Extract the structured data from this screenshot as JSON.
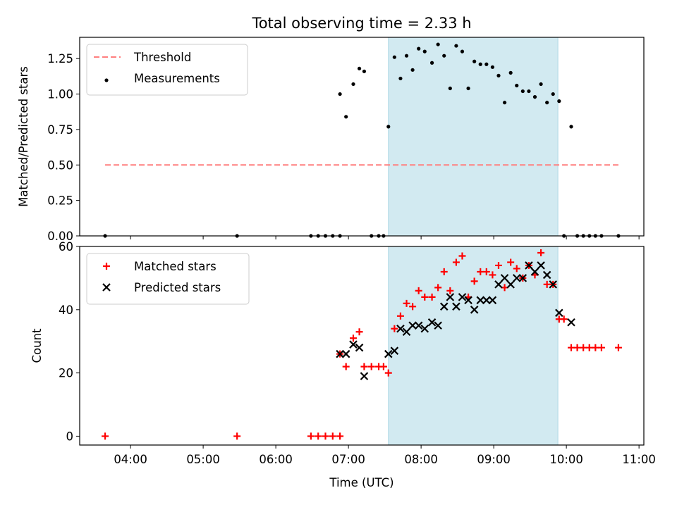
{
  "figure": {
    "title": "Total observing time = 2.33 h",
    "xlabel": "Time (UTC)",
    "xticks": [
      "04:00",
      "05:00",
      "06:00",
      "07:00",
      "08:00",
      "09:00",
      "10:00",
      "11:00"
    ],
    "shade_color": "#add8e6"
  },
  "chart_data": [
    {
      "type": "scatter",
      "ylabel": "Matched/Predicted stars",
      "ylim": [
        0,
        1.4
      ],
      "yticks": [
        "0.00",
        "0.25",
        "0.50",
        "0.75",
        "1.00",
        "1.25"
      ],
      "xlim": [
        "03:18",
        "11:04"
      ],
      "shaded_interval": [
        "07:33",
        "09:53"
      ],
      "legend": {
        "position": "upper-left"
      },
      "threshold": {
        "name": "Threshold",
        "value": 0.5,
        "x": [
          "03:39",
          "10:43"
        ],
        "color": "#ff7f7f",
        "style": "dashed"
      },
      "series": [
        {
          "name": "Measurements",
          "color": "#000000",
          "marker": "dot",
          "points": [
            [
              "03:39",
              0.0
            ],
            [
              "05:28",
              0.0
            ],
            [
              "06:29",
              0.0
            ],
            [
              "06:35",
              0.0
            ],
            [
              "06:41",
              0.0
            ],
            [
              "06:47",
              0.0
            ],
            [
              "06:53",
              0.0
            ],
            [
              "06:53",
              1.0
            ],
            [
              "06:58",
              0.84
            ],
            [
              "07:04",
              1.07
            ],
            [
              "07:09",
              1.18
            ],
            [
              "07:13",
              1.16
            ],
            [
              "07:19",
              0.0
            ],
            [
              "07:25",
              0.0
            ],
            [
              "07:29",
              0.0
            ],
            [
              "07:33",
              0.77
            ],
            [
              "07:38",
              1.26
            ],
            [
              "07:43",
              1.11
            ],
            [
              "07:48",
              1.27
            ],
            [
              "07:53",
              1.17
            ],
            [
              "07:58",
              1.32
            ],
            [
              "08:03",
              1.3
            ],
            [
              "08:09",
              1.22
            ],
            [
              "08:14",
              1.35
            ],
            [
              "08:19",
              1.27
            ],
            [
              "08:24",
              1.04
            ],
            [
              "08:29",
              1.34
            ],
            [
              "08:34",
              1.3
            ],
            [
              "08:39",
              1.04
            ],
            [
              "08:44",
              1.23
            ],
            [
              "08:49",
              1.21
            ],
            [
              "08:54",
              1.21
            ],
            [
              "08:59",
              1.19
            ],
            [
              "09:04",
              1.13
            ],
            [
              "09:09",
              0.94
            ],
            [
              "09:14",
              1.15
            ],
            [
              "09:19",
              1.06
            ],
            [
              "09:24",
              1.02
            ],
            [
              "09:29",
              1.02
            ],
            [
              "09:34",
              0.98
            ],
            [
              "09:39",
              1.07
            ],
            [
              "09:44",
              0.94
            ],
            [
              "09:49",
              1.0
            ],
            [
              "09:54",
              0.95
            ],
            [
              "09:58",
              0.0
            ],
            [
              "10:04",
              0.77
            ],
            [
              "10:09",
              0.0
            ],
            [
              "10:14",
              0.0
            ],
            [
              "10:19",
              0.0
            ],
            [
              "10:24",
              0.0
            ],
            [
              "10:29",
              0.0
            ],
            [
              "10:43",
              0.0
            ]
          ]
        }
      ]
    },
    {
      "type": "scatter",
      "ylabel": "Count",
      "ylim": [
        -2.8,
        60
      ],
      "yticks": [
        "0",
        "20",
        "40",
        "60"
      ],
      "xlim": [
        "03:18",
        "11:04"
      ],
      "shaded_interval": [
        "07:33",
        "09:53"
      ],
      "legend": {
        "position": "upper-left"
      },
      "series": [
        {
          "name": "Matched stars",
          "color": "#ff0000",
          "marker": "plus",
          "points": [
            [
              "03:39",
              0
            ],
            [
              "05:28",
              0
            ],
            [
              "06:29",
              0
            ],
            [
              "06:35",
              0
            ],
            [
              "06:41",
              0
            ],
            [
              "06:47",
              0
            ],
            [
              "06:53",
              0
            ],
            [
              "06:53",
              26
            ],
            [
              "06:58",
              22
            ],
            [
              "07:04",
              31
            ],
            [
              "07:09",
              33
            ],
            [
              "07:13",
              22
            ],
            [
              "07:19",
              22
            ],
            [
              "07:25",
              22
            ],
            [
              "07:29",
              22
            ],
            [
              "07:33",
              20
            ],
            [
              "07:38",
              34
            ],
            [
              "07:43",
              38
            ],
            [
              "07:48",
              42
            ],
            [
              "07:53",
              41
            ],
            [
              "07:58",
              46
            ],
            [
              "08:03",
              44
            ],
            [
              "08:09",
              44
            ],
            [
              "08:14",
              47
            ],
            [
              "08:19",
              52
            ],
            [
              "08:24",
              46
            ],
            [
              "08:29",
              55
            ],
            [
              "08:34",
              57
            ],
            [
              "08:39",
              44
            ],
            [
              "08:44",
              49
            ],
            [
              "08:49",
              52
            ],
            [
              "08:54",
              52
            ],
            [
              "08:59",
              51
            ],
            [
              "09:04",
              54
            ],
            [
              "09:09",
              47
            ],
            [
              "09:14",
              55
            ],
            [
              "09:19",
              53
            ],
            [
              "09:24",
              50
            ],
            [
              "09:29",
              54
            ],
            [
              "09:34",
              51
            ],
            [
              "09:39",
              58
            ],
            [
              "09:44",
              48
            ],
            [
              "09:49",
              48
            ],
            [
              "09:54",
              37
            ],
            [
              "09:58",
              37
            ],
            [
              "10:04",
              28
            ],
            [
              "10:09",
              28
            ],
            [
              "10:14",
              28
            ],
            [
              "10:19",
              28
            ],
            [
              "10:24",
              28
            ],
            [
              "10:29",
              28
            ],
            [
              "10:43",
              28
            ]
          ]
        },
        {
          "name": "Predicted stars",
          "color": "#000000",
          "marker": "x",
          "points": [
            [
              "06:53",
              26
            ],
            [
              "06:58",
              26
            ],
            [
              "07:04",
              29
            ],
            [
              "07:09",
              28
            ],
            [
              "07:13",
              19
            ],
            [
              "07:33",
              26
            ],
            [
              "07:38",
              27
            ],
            [
              "07:43",
              34
            ],
            [
              "07:48",
              33
            ],
            [
              "07:53",
              35
            ],
            [
              "07:58",
              35
            ],
            [
              "08:03",
              34
            ],
            [
              "08:09",
              36
            ],
            [
              "08:14",
              35
            ],
            [
              "08:19",
              41
            ],
            [
              "08:24",
              44
            ],
            [
              "08:29",
              41
            ],
            [
              "08:34",
              44
            ],
            [
              "08:39",
              43
            ],
            [
              "08:44",
              40
            ],
            [
              "08:49",
              43
            ],
            [
              "08:54",
              43
            ],
            [
              "08:59",
              43
            ],
            [
              "09:04",
              48
            ],
            [
              "09:09",
              50
            ],
            [
              "09:14",
              48
            ],
            [
              "09:19",
              50
            ],
            [
              "09:24",
              50
            ],
            [
              "09:29",
              54
            ],
            [
              "09:34",
              52
            ],
            [
              "09:39",
              54
            ],
            [
              "09:44",
              51
            ],
            [
              "09:49",
              48
            ],
            [
              "09:54",
              39
            ],
            [
              "10:04",
              36
            ]
          ]
        }
      ]
    }
  ]
}
